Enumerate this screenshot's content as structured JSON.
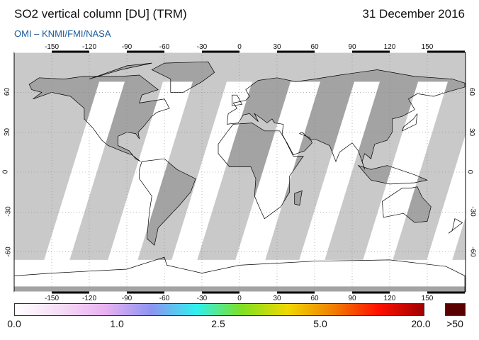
{
  "header": {
    "title": "SO2 vertical column [DU] (TRM)",
    "subtitle": "OMI  –  KNMI/FMI/NASA",
    "date": "31 December 2016"
  },
  "map": {
    "longitude_ticks": [
      "-150",
      "-120",
      "-90",
      "-60",
      "-30",
      "0",
      "30",
      "60",
      "90",
      "120",
      "150"
    ],
    "latitude_ticks": [
      "60",
      "30",
      "0",
      "-30",
      "-60"
    ],
    "colors": {
      "no_data": "#c9c9c9",
      "land_no_data": "#a3a3a3",
      "low_value": "#ffffff",
      "coastline": "#000000"
    }
  },
  "colorbar": {
    "labels": [
      "0.0",
      "1.0",
      "2.5",
      "5.0",
      "20.0"
    ],
    "overflow_label": ">50",
    "overflow_color": "#5a0000",
    "gradient_colors": [
      "#ffffff",
      "#f6dcf6",
      "#e8b0f0",
      "#8c94f0",
      "#30f0f0",
      "#80e020",
      "#f0d800",
      "#f08000",
      "#ff1000",
      "#a00000"
    ]
  }
}
